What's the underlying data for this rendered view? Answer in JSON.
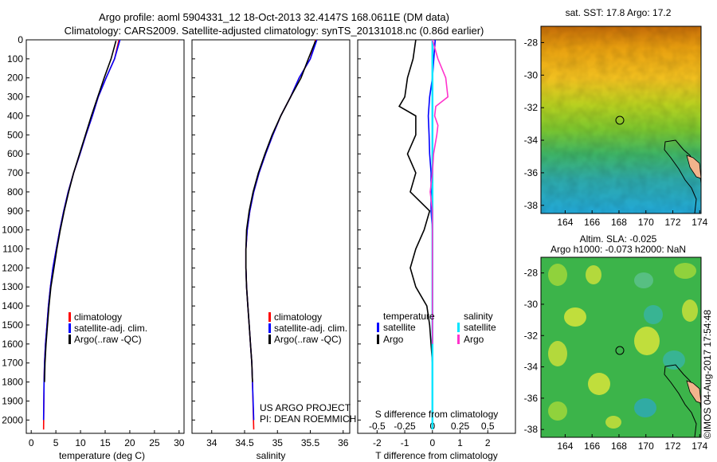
{
  "header": {
    "title_line1": "Argo profile: aoml 5904331_12 18-Oct-2013 32.4147S 168.0611E (DM data)",
    "title_line2": "Climatology: CARS2009. Satellite-adjusted climatology: synTS_20131018.nc (0.86d earlier)"
  },
  "colors": {
    "climatology": "#ff0000",
    "satellite": "#0000ff",
    "argo": "#000000",
    "sal_satellite": "#00e5ff",
    "sal_argo": "#ff33cc"
  },
  "legend": {
    "climatology": "climatology",
    "satellite": "satellite-adj. clim.",
    "argo": "Argo(..raw -QC)",
    "diff_temperature": "temperature",
    "diff_salinity": "salinity",
    "diff_satellite": "satellite",
    "diff_argo": "Argo"
  },
  "notes": {
    "project": "US ARGO PROJECT",
    "pi": "PI: DEAN ROEMMICH",
    "credit": "©IMOS 04-Aug-2017 17:54:48"
  },
  "maps": {
    "sst_title": "sat. SST: 17.8  Argo: 17.2",
    "sla_title1": "Altim. SLA: -0.025",
    "sla_title2": "Argo h1000: -0.073 h2000: NaN",
    "lat_ticks": [
      "-28",
      "-30",
      "-32",
      "-34",
      "-36",
      "-38"
    ],
    "lon_ticks": [
      "164",
      "166",
      "168",
      "170",
      "172",
      "174"
    ]
  },
  "chart_data": [
    {
      "type": "line",
      "xlabel": "temperature (deg C)",
      "ylabel": "",
      "xlim": [
        -1,
        31
      ],
      "ylim": [
        2070,
        0
      ],
      "x_ticks": [
        "0",
        "5",
        "10",
        "15",
        "20",
        "25",
        "30"
      ],
      "y_ticks": [
        "0",
        "100",
        "200",
        "300",
        "400",
        "500",
        "600",
        "700",
        "800",
        "900",
        "1000",
        "1100",
        "1200",
        "1300",
        "1400",
        "1500",
        "1600",
        "1700",
        "1800",
        "1900",
        "2000"
      ],
      "series": [
        {
          "name": "climatology",
          "x": [
            17.8,
            16.9,
            15.2,
            13.6,
            12.4,
            11.1,
            9.9,
            8.6,
            7.5,
            6.6,
            5.8,
            5.1,
            4.4,
            3.9,
            3.5,
            3.2,
            2.9,
            2.7,
            2.6,
            2.5
          ],
          "y": [
            0,
            100,
            200,
            300,
            400,
            500,
            600,
            700,
            800,
            900,
            1000,
            1100,
            1200,
            1300,
            1400,
            1500,
            1600,
            1700,
            1800,
            2050
          ]
        },
        {
          "name": "satellite-adj. clim.",
          "x": [
            18.0,
            16.9,
            15.2,
            13.6,
            12.4,
            11.1,
            9.9,
            8.6,
            7.5,
            6.6,
            5.8,
            5.1,
            4.4,
            3.9,
            3.5,
            3.2,
            2.9,
            2.7,
            2.6,
            2.5
          ],
          "y": [
            0,
            100,
            200,
            300,
            400,
            500,
            600,
            700,
            800,
            900,
            1000,
            1100,
            1200,
            1300,
            1400,
            1500,
            1600,
            1700,
            1800,
            2000
          ]
        },
        {
          "name": "Argo(..raw -QC)",
          "x": [
            17.2,
            16.2,
            14.8,
            13.5,
            12.2,
            11.0,
            9.8,
            8.6,
            7.6,
            6.7,
            5.9,
            5.2,
            4.6,
            4.0,
            3.6,
            3.3,
            3.0,
            2.8,
            2.7
          ],
          "y": [
            5,
            100,
            200,
            300,
            400,
            500,
            600,
            700,
            800,
            900,
            1000,
            1100,
            1200,
            1300,
            1400,
            1500,
            1600,
            1700,
            1800
          ]
        }
      ]
    },
    {
      "type": "line",
      "xlabel": "salinity",
      "ylabel": "",
      "xlim": [
        33.7,
        36.1
      ],
      "ylim": [
        2070,
        0
      ],
      "x_ticks": [
        "34",
        "34.5",
        "35",
        "35.5",
        "36"
      ],
      "series": [
        {
          "name": "climatology",
          "x": [
            35.58,
            35.5,
            35.33,
            35.2,
            35.05,
            34.93,
            34.82,
            34.72,
            34.64,
            34.58,
            34.54,
            34.52,
            34.52,
            34.53,
            34.55,
            34.57,
            34.59,
            34.61,
            34.62,
            34.64
          ],
          "y": [
            0,
            100,
            200,
            300,
            400,
            500,
            600,
            700,
            800,
            900,
            1000,
            1100,
            1200,
            1300,
            1400,
            1500,
            1600,
            1700,
            1800,
            2050
          ]
        },
        {
          "name": "satellite-adj. clim.",
          "x": [
            35.6,
            35.5,
            35.33,
            35.2,
            35.05,
            34.93,
            34.82,
            34.72,
            34.64,
            34.58,
            34.54,
            34.52,
            34.52,
            34.53,
            34.55,
            34.57,
            34.59,
            34.61,
            34.62,
            34.64
          ],
          "y": [
            0,
            100,
            200,
            300,
            400,
            500,
            600,
            700,
            800,
            900,
            1000,
            1100,
            1200,
            1300,
            1400,
            1500,
            1600,
            1700,
            1800,
            2000
          ]
        },
        {
          "name": "Argo(..raw -QC)",
          "x": [
            35.58,
            35.47,
            35.36,
            35.2,
            35.05,
            34.92,
            34.81,
            34.71,
            34.63,
            34.57,
            34.53,
            34.52,
            34.52,
            34.53,
            34.55,
            34.57,
            34.59,
            34.61,
            34.62
          ],
          "y": [
            5,
            100,
            200,
            300,
            400,
            500,
            600,
            700,
            800,
            900,
            1000,
            1100,
            1200,
            1300,
            1400,
            1500,
            1600,
            1700,
            1800
          ]
        }
      ]
    },
    {
      "type": "line",
      "xlabel": "T difference from climatology",
      "ylabel": "",
      "x2label": "S difference from climatology",
      "xlim": [
        -2.7,
        3.0
      ],
      "x2lim": [
        -0.675,
        0.75
      ],
      "ylim": [
        2070,
        0
      ],
      "x_ticks": [
        "-2",
        "-1",
        "0",
        "1",
        "2"
      ],
      "x2_ticks": [
        "-0.5",
        "-0.25",
        "0",
        "0.25",
        "0.5"
      ],
      "series": [
        {
          "name": "temperature satellite",
          "x": [
            0.1,
            0.05,
            0.0,
            -0.1,
            -0.15,
            -0.12,
            -0.1,
            -0.05,
            -0.05,
            -0.05,
            0.0,
            0.0,
            0.0,
            0.0,
            0.0,
            0.0,
            0.0
          ],
          "y": [
            0,
            100,
            200,
            300,
            400,
            500,
            600,
            700,
            800,
            900,
            1000,
            1100,
            1200,
            1300,
            1400,
            1500,
            1600
          ]
        },
        {
          "name": "temperature Argo",
          "x": [
            -0.6,
            -0.7,
            -0.9,
            -1.0,
            -1.2,
            -0.6,
            -0.6,
            -0.9,
            -0.6,
            -0.8,
            -0.1,
            -0.3,
            -0.6,
            -0.8,
            -0.6,
            -0.2,
            -0.1,
            0.0
          ],
          "y": [
            0,
            100,
            200,
            300,
            350,
            400,
            500,
            600,
            700,
            800,
            900,
            1000,
            1100,
            1200,
            1300,
            1400,
            1500,
            1700
          ]
        },
        {
          "name": "salinity satellite",
          "x": [
            0.0,
            0.0,
            0.0,
            0.0,
            0.0,
            0.0,
            0.0,
            0.0,
            0.0,
            0.0
          ],
          "y": [
            0,
            200,
            400,
            600,
            800,
            1000,
            1200,
            1400,
            1600,
            2050
          ]
        },
        {
          "name": "salinity Argo",
          "x": [
            0.0,
            0.05,
            0.12,
            0.14,
            0.03,
            0.02,
            0.05,
            0.04,
            0.01,
            0.0,
            -0.02,
            0.0,
            0.0,
            0.0,
            0.0
          ],
          "y": [
            0,
            100,
            200,
            300,
            350,
            400,
            450,
            500,
            600,
            700,
            800,
            900,
            1000,
            1200,
            1600
          ]
        }
      ]
    }
  ]
}
